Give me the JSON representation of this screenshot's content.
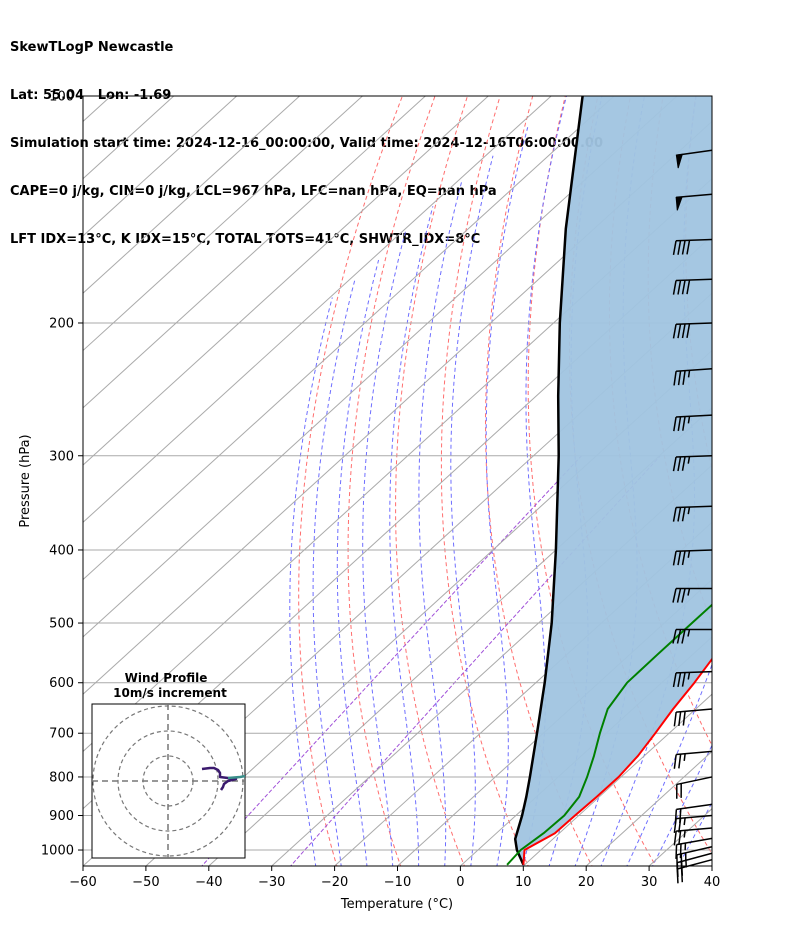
{
  "header": {
    "line1": "SkewTLogP Newcastle",
    "line2": "Lat: 55.04   Lon: -1.69",
    "line3": "Simulation start time: 2024-12-16_00:00:00, Valid time: 2024-12-16T06:00:00.00",
    "line4": "CAPE=0 j/kg, CIN=0 j/kg, LCL=967 hPa, LFC=nan hPa, EQ=nan hPa",
    "line5": "LFT IDX=13°C, K IDX=15°C, TOTAL TOTS=41°C, SHWTR_IDX=8°C"
  },
  "chart_data": {
    "type": "line",
    "subtype": "skew-t log-p",
    "xlabel": "Temperature (°C)",
    "ylabel": "Pressure (hPa)",
    "xlim": [
      -60,
      40
    ],
    "ylim": [
      1050,
      100
    ],
    "yscale": "log",
    "x_ticks": [
      -60,
      -50,
      -40,
      -30,
      -20,
      -10,
      0,
      10,
      20,
      30,
      40
    ],
    "y_ticks": [
      100,
      200,
      300,
      400,
      500,
      600,
      700,
      800,
      900,
      1000
    ],
    "grid": true,
    "series": [
      {
        "role": "temperature",
        "color": "#ff0000",
        "points": [
          [
            1046,
            9.8
          ],
          [
            1000,
            7.4
          ],
          [
            950,
            9.3
          ],
          [
            900,
            9.4
          ],
          [
            850,
            9.6
          ],
          [
            800,
            9.6
          ],
          [
            750,
            9.0
          ],
          [
            700,
            7.8
          ],
          [
            650,
            6.4
          ],
          [
            600,
            5.2
          ],
          [
            550,
            3.6
          ],
          [
            500,
            1.8
          ],
          [
            450,
            -0.2
          ],
          [
            400,
            -2.8
          ],
          [
            350,
            -6.8
          ],
          [
            300,
            -11.0
          ],
          [
            250,
            -17.5
          ],
          [
            200,
            -24.5
          ],
          [
            175,
            -28.6
          ],
          [
            150,
            -31.0
          ],
          [
            140,
            -30.0
          ],
          [
            130,
            -28.0
          ],
          [
            120,
            -23.5
          ],
          [
            110,
            -18.0
          ],
          [
            100,
            -11.0
          ]
        ]
      },
      {
        "role": "dewpoint",
        "color": "#008000",
        "points": [
          [
            1046,
            7.2
          ],
          [
            1000,
            6.8
          ],
          [
            950,
            7.5
          ],
          [
            900,
            7.7
          ],
          [
            850,
            6.8
          ],
          [
            800,
            4.6
          ],
          [
            750,
            2.0
          ],
          [
            700,
            -1.0
          ],
          [
            650,
            -4.0
          ],
          [
            600,
            -5.5
          ],
          [
            550,
            -5.6
          ],
          [
            500,
            -5.6
          ],
          [
            450,
            -5.6
          ],
          [
            400,
            -7.0
          ],
          [
            350,
            -12.0
          ],
          [
            300,
            -18.0
          ],
          [
            250,
            -23.5
          ],
          [
            200,
            -29.5
          ],
          [
            175,
            -32.5
          ],
          [
            150,
            -34.0
          ],
          [
            140,
            -34.0
          ],
          [
            130,
            -32.5
          ],
          [
            120,
            -29.0
          ],
          [
            110,
            -27.0
          ],
          [
            100,
            -21.5
          ]
        ]
      },
      {
        "role": "parcel",
        "color": "#000000",
        "points": [
          [
            1046,
            9.8
          ],
          [
            1000,
            6.2
          ],
          [
            967,
            4.0
          ],
          [
            900,
            1.0
          ],
          [
            850,
            -1.6
          ],
          [
            800,
            -4.5
          ],
          [
            700,
            -11.0
          ],
          [
            600,
            -18.6
          ],
          [
            500,
            -27.9
          ],
          [
            400,
            -40.0
          ],
          [
            300,
            -56.0
          ],
          [
            250,
            -66.5
          ],
          [
            200,
            -79.0
          ],
          [
            150,
            -94.5
          ],
          [
            100,
            -115.0
          ]
        ]
      }
    ],
    "shading": {
      "between": [
        "temperature",
        "parcel"
      ],
      "color": "#a0c4e0"
    },
    "background_lines": {
      "isotherm_color": "#aaaaaa",
      "dry_adiabat_color": "#ff6e6e",
      "moist_adiabat_color": "#6e6eff",
      "mixing_ratio_color": "#a050d8"
    },
    "wind_barbs": {
      "color": "#000000",
      "entries": [
        {
          "p": 1030,
          "speed_kt": 20,
          "dir_deg": 255
        },
        {
          "p": 1010,
          "speed_kt": 25,
          "dir_deg": 255
        },
        {
          "p": 990,
          "speed_kt": 25,
          "dir_deg": 257
        },
        {
          "p": 965,
          "speed_kt": 25,
          "dir_deg": 260
        },
        {
          "p": 935,
          "speed_kt": 25,
          "dir_deg": 265
        },
        {
          "p": 900,
          "speed_kt": 25,
          "dir_deg": 265
        },
        {
          "p": 870,
          "speed_kt": 20,
          "dir_deg": 262
        },
        {
          "p": 800,
          "speed_kt": 20,
          "dir_deg": 258
        },
        {
          "p": 740,
          "speed_kt": 25,
          "dir_deg": 265
        },
        {
          "p": 650,
          "speed_kt": 30,
          "dir_deg": 265
        },
        {
          "p": 580,
          "speed_kt": 35,
          "dir_deg": 268
        },
        {
          "p": 510,
          "speed_kt": 35,
          "dir_deg": 270
        },
        {
          "p": 450,
          "speed_kt": 35,
          "dir_deg": 270
        },
        {
          "p": 400,
          "speed_kt": 35,
          "dir_deg": 268
        },
        {
          "p": 350,
          "speed_kt": 35,
          "dir_deg": 268
        },
        {
          "p": 300,
          "speed_kt": 35,
          "dir_deg": 268
        },
        {
          "p": 265,
          "speed_kt": 35,
          "dir_deg": 267
        },
        {
          "p": 230,
          "speed_kt": 35,
          "dir_deg": 266
        },
        {
          "p": 200,
          "speed_kt": 40,
          "dir_deg": 268
        },
        {
          "p": 175,
          "speed_kt": 40,
          "dir_deg": 268
        },
        {
          "p": 155,
          "speed_kt": 40,
          "dir_deg": 268
        },
        {
          "p": 135,
          "speed_kt": 50,
          "dir_deg": 265
        },
        {
          "p": 118,
          "speed_kt": 50,
          "dir_deg": 262
        }
      ]
    },
    "inset": {
      "title": "Wind Profile",
      "subtitle": "10m/s increment",
      "rings_ms": [
        10,
        20,
        30
      ],
      "hodograph": [
        [
          10,
          2
        ],
        [
          11,
          1
        ],
        [
          12,
          0
        ],
        [
          13,
          -2
        ],
        [
          13,
          -5
        ],
        [
          12,
          -8
        ],
        [
          11,
          -10
        ],
        [
          10,
          -12
        ],
        [
          8,
          -13
        ],
        [
          4,
          -12.5
        ],
        [
          2,
          -12
        ],
        [
          -5,
          -11
        ]
      ]
    }
  }
}
